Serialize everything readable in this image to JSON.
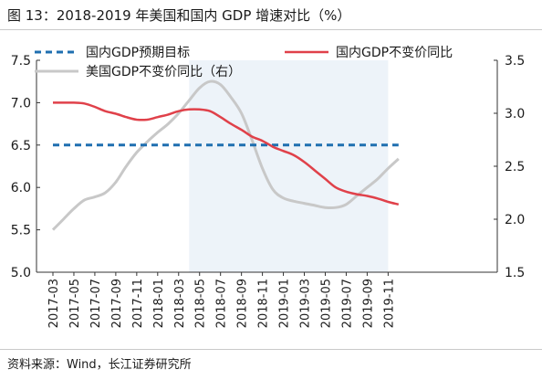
{
  "figure": {
    "title": "图 13：2018-2019 年美国和国内 GDP 增速对比（%）",
    "source": "资料来源：Wind，长江证券研究所"
  },
  "colors": {
    "target": "#1f6fb0",
    "domestic": "#e0414a",
    "us": "#c8c8c8",
    "shade": "#edf3f9",
    "axis": "#333333"
  },
  "chart_data": {
    "type": "line",
    "dual_axis": true,
    "x_labels": [
      "2017-03",
      "2017-05",
      "2017-07",
      "2017-09",
      "2017-11",
      "2018-01",
      "2018-03",
      "2018-05",
      "2018-07",
      "2018-09",
      "2018-11",
      "2019-01",
      "2019-03",
      "2019-05",
      "2019-07",
      "2019-09",
      "2019-11"
    ],
    "y_left": {
      "min": 5.0,
      "max": 7.5,
      "ticks": [
        "5.0",
        "5.5",
        "6.0",
        "6.5",
        "7.0",
        "7.5"
      ]
    },
    "y_right": {
      "min": 1.5,
      "max": 3.5,
      "ticks": [
        "1.5",
        "2.0",
        "2.5",
        "3.0",
        "3.5"
      ]
    },
    "shaded_region": {
      "from": "2018-04",
      "to": "2019-11"
    },
    "legend": [
      "国内GDP预期目标",
      "国内GDP不变价同比",
      "美国GDP不变价同比（右）"
    ],
    "series": [
      {
        "name": "国内GDP预期目标",
        "axis": "left",
        "style": "dashed",
        "x": [
          "2017-03",
          "2019-12"
        ],
        "values": [
          6.5,
          6.5
        ]
      },
      {
        "name": "国内GDP不变价同比",
        "axis": "left",
        "style": "solid",
        "x": [
          "2017-03",
          "2017-04",
          "2017-05",
          "2017-06",
          "2017-07",
          "2017-08",
          "2017-09",
          "2017-10",
          "2017-11",
          "2017-12",
          "2018-01",
          "2018-02",
          "2018-03",
          "2018-04",
          "2018-05",
          "2018-06",
          "2018-07",
          "2018-08",
          "2018-09",
          "2018-10",
          "2018-11",
          "2018-12",
          "2019-01",
          "2019-02",
          "2019-03",
          "2019-04",
          "2019-05",
          "2019-06",
          "2019-07",
          "2019-08",
          "2019-09",
          "2019-10",
          "2019-11",
          "2019-12"
        ],
        "values": [
          7.0,
          7.0,
          7.0,
          6.99,
          6.95,
          6.9,
          6.87,
          6.83,
          6.8,
          6.8,
          6.83,
          6.86,
          6.9,
          6.92,
          6.92,
          6.9,
          6.83,
          6.75,
          6.68,
          6.6,
          6.55,
          6.48,
          6.43,
          6.38,
          6.3,
          6.2,
          6.1,
          6.0,
          5.95,
          5.92,
          5.9,
          5.87,
          5.83,
          5.8
        ]
      },
      {
        "name": "美国GDP不变价同比（右）",
        "axis": "right",
        "style": "solid",
        "x": [
          "2017-03",
          "2017-04",
          "2017-05",
          "2017-06",
          "2017-07",
          "2017-08",
          "2017-09",
          "2017-10",
          "2017-11",
          "2017-12",
          "2018-01",
          "2018-02",
          "2018-03",
          "2018-04",
          "2018-05",
          "2018-06",
          "2018-07",
          "2018-08",
          "2018-09",
          "2018-10",
          "2018-11",
          "2018-12",
          "2019-01",
          "2019-02",
          "2019-03",
          "2019-04",
          "2019-05",
          "2019-06",
          "2019-07",
          "2019-08",
          "2019-09",
          "2019-10",
          "2019-11",
          "2019-12"
        ],
        "values": [
          1.9,
          2.0,
          2.1,
          2.18,
          2.21,
          2.25,
          2.35,
          2.5,
          2.63,
          2.73,
          2.82,
          2.9,
          3.0,
          3.12,
          3.24,
          3.3,
          3.27,
          3.15,
          3.0,
          2.75,
          2.48,
          2.28,
          2.2,
          2.17,
          2.15,
          2.13,
          2.11,
          2.11,
          2.14,
          2.22,
          2.3,
          2.38,
          2.48,
          2.57
        ]
      }
    ]
  }
}
